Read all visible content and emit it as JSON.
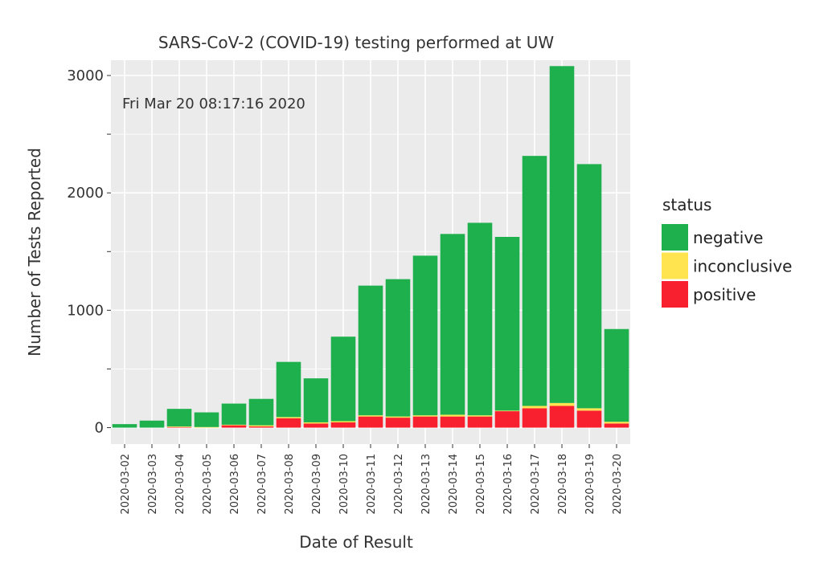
{
  "chart_data": {
    "type": "bar",
    "stacked": true,
    "title": "SARS-CoV-2 (COVID-19) testing performed at UW",
    "annotation": "Fri Mar 20 08:17:16 2020",
    "xlabel": "Date of Result",
    "ylabel": "Number of Tests Reported",
    "ylim": [
      -140,
      3130
    ],
    "yticks": [
      0,
      1000,
      2000,
      3000
    ],
    "yticklabels": [
      "0",
      "1000",
      "2000",
      "3000"
    ],
    "yminor": [
      500,
      1500,
      2500
    ],
    "categories": [
      "2020-03-02",
      "2020-03-03",
      "2020-03-04",
      "2020-03-05",
      "2020-03-06",
      "2020-03-07",
      "2020-03-08",
      "2020-03-09",
      "2020-03-10",
      "2020-03-11",
      "2020-03-12",
      "2020-03-13",
      "2020-03-14",
      "2020-03-15",
      "2020-03-16",
      "2020-03-17",
      "2020-03-18",
      "2020-03-19",
      "2020-03-20"
    ],
    "legend_title": "status",
    "legend_position": "right",
    "series": [
      {
        "name": "positive",
        "color": "#f8202f",
        "values": [
          0,
          0,
          5,
          0,
          20,
          10,
          80,
          35,
          45,
          95,
          85,
          95,
          95,
          95,
          140,
          165,
          185,
          145,
          35
        ]
      },
      {
        "name": "inconclusive",
        "color": "#ffe450",
        "values": [
          0,
          0,
          5,
          5,
          5,
          10,
          10,
          10,
          10,
          10,
          10,
          10,
          15,
          10,
          5,
          20,
          25,
          20,
          15
        ]
      },
      {
        "name": "negative",
        "color": "#1fb04e",
        "values": [
          30,
          60,
          150,
          125,
          180,
          225,
          470,
          375,
          720,
          1105,
          1170,
          1360,
          1540,
          1640,
          1480,
          2130,
          2870,
          2080,
          790
        ]
      }
    ],
    "legend_order": [
      "negative",
      "inconclusive",
      "positive"
    ]
  }
}
